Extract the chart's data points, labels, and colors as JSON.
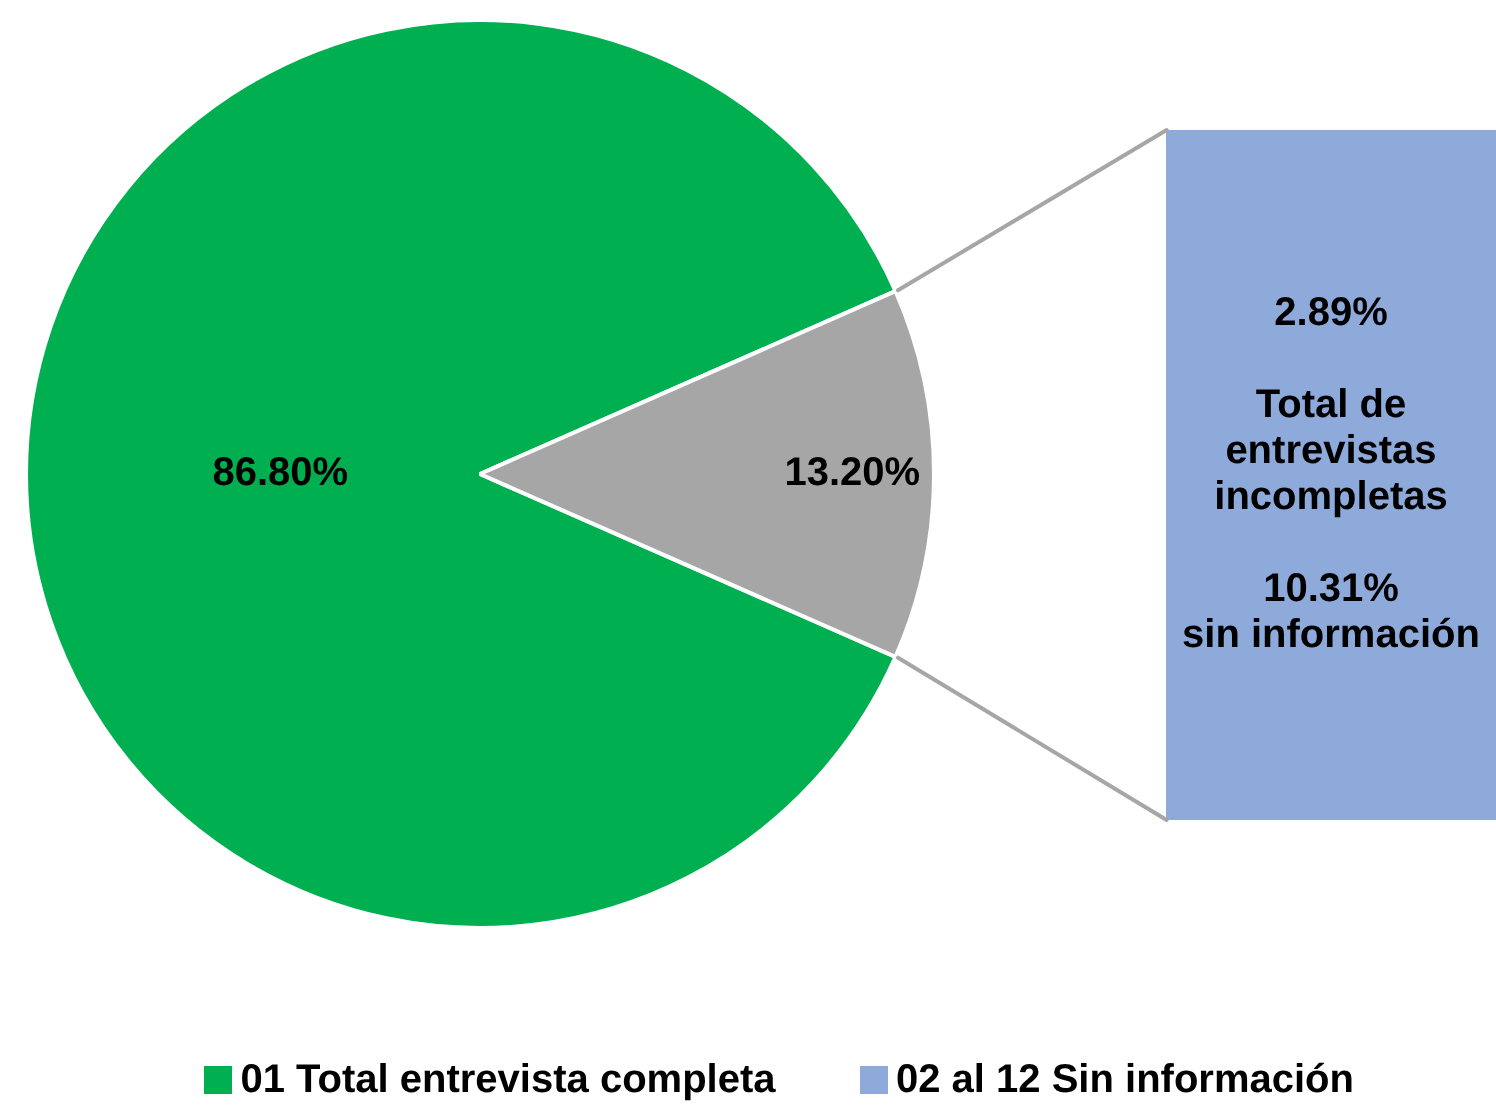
{
  "chart_data": [
    {
      "type": "pie",
      "categories": [
        "01 Total entrevista completa",
        null
      ],
      "values": [
        86.8,
        13.2
      ],
      "colors": [
        "#00b050",
        "#a6a6a6"
      ],
      "value_labels": [
        "86.80%",
        "13.20%"
      ],
      "legend": "bottom"
    },
    {
      "type": "bar",
      "stacked": true,
      "categories": [
        null
      ],
      "series": [
        {
          "name": "02 al 12 Sin información",
          "color": "#8eaadb",
          "values": [
            10.31
          ],
          "value_labels": [
            "10.31%\nsin información"
          ]
        },
        {
          "color": "#8eaadb",
          "values": [
            2.89
          ],
          "value_labels": [
            "2.89%\n\nTotal de\nentrevistas\nincompletas"
          ]
        }
      ],
      "ylim": [
        0,
        13.2
      ],
      "tick_labels": false,
      "legend": "bottom"
    }
  ]
}
